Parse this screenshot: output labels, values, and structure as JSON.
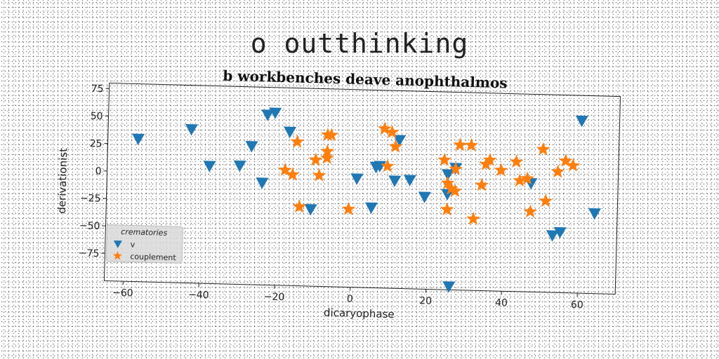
{
  "suptitle": "o outthinking",
  "chart_data": {
    "type": "scatter",
    "title": "b workbenches deave anophthalmos",
    "xlabel": "dicaryophase",
    "ylabel": "derivationist",
    "xlim": [
      -65,
      70
    ],
    "ylim": [
      -100,
      80
    ],
    "xticks": [
      -60,
      -40,
      -20,
      0,
      20,
      40,
      60
    ],
    "yticks": [
      75,
      50,
      25,
      0,
      -25,
      -50,
      -75
    ],
    "grid": false,
    "legend": {
      "title": "crematories",
      "placement": "lower-left"
    },
    "series": [
      {
        "name": "v",
        "marker": "triangle-down",
        "color": "#1f77b4",
        "points": [
          [
            -57,
            30
          ],
          [
            -43,
            40
          ],
          [
            -38,
            7
          ],
          [
            -30,
            8
          ],
          [
            -27,
            26
          ],
          [
            -24,
            -7
          ],
          [
            -23,
            55
          ],
          [
            -21,
            57
          ],
          [
            -17,
            40
          ],
          [
            -11,
            -30
          ],
          [
            1,
            -1
          ],
          [
            5,
            -27
          ],
          [
            6,
            10
          ],
          [
            7,
            11
          ],
          [
            12,
            35
          ],
          [
            11,
            -2
          ],
          [
            15,
            -1
          ],
          [
            19,
            -16
          ],
          [
            25,
            -13
          ],
          [
            25,
            5
          ],
          [
            27,
            11
          ],
          [
            26,
            -97
          ],
          [
            47,
            -1
          ],
          [
            53,
            -48
          ],
          [
            55,
            -45
          ],
          [
            60,
            57
          ],
          [
            64,
            -27
          ]
        ]
      },
      {
        "name": "couplement",
        "marker": "star",
        "color": "#ff7f0e",
        "points": [
          [
            -18,
            5
          ],
          [
            -16,
            1
          ],
          [
            -15,
            31
          ],
          [
            -14,
            -28
          ],
          [
            -10,
            15
          ],
          [
            -9,
            1
          ],
          [
            -7,
            38
          ],
          [
            -6,
            38
          ],
          [
            -7,
            23
          ],
          [
            -7,
            17
          ],
          [
            -1,
            -29
          ],
          [
            8,
            45
          ],
          [
            10,
            42
          ],
          [
            11,
            29
          ],
          [
            9,
            11
          ],
          [
            24,
            18
          ],
          [
            25,
            -3
          ],
          [
            26,
            -8
          ],
          [
            25,
            -27
          ],
          [
            27,
            10
          ],
          [
            27,
            -10
          ],
          [
            28,
            32
          ],
          [
            31,
            32
          ],
          [
            32,
            -35
          ],
          [
            34,
            -4
          ],
          [
            35,
            15
          ],
          [
            36,
            19
          ],
          [
            39,
            10
          ],
          [
            43,
            18
          ],
          [
            44,
            1
          ],
          [
            46,
            3
          ],
          [
            47,
            -27
          ],
          [
            50,
            30
          ],
          [
            51,
            -17
          ],
          [
            54,
            10
          ],
          [
            56,
            20
          ],
          [
            58,
            16
          ]
        ]
      }
    ]
  }
}
